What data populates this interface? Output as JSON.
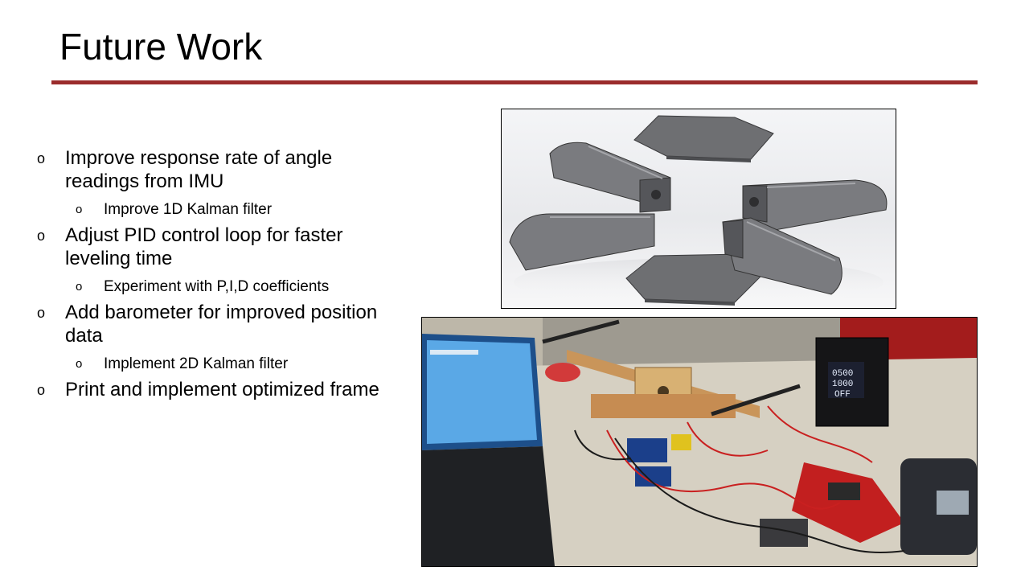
{
  "slide": {
    "title": "Future Work",
    "accent_color": "#9b2c2c"
  },
  "bullets": [
    {
      "text": "Improve response rate of angle readings from IMU",
      "sub": [
        "Improve 1D Kalman filter"
      ]
    },
    {
      "text": "Adjust PID control loop for faster leveling time",
      "sub": [
        "Experiment with P,I,D coefficients"
      ]
    },
    {
      "text": "Add barometer for improved position data",
      "sub": [
        "Implement 2D Kalman filter"
      ]
    },
    {
      "text": "Print and implement optimized frame",
      "sub": []
    }
  ],
  "bullet_marker": "o",
  "images": {
    "psu_display": "0500 1000 OFF"
  }
}
